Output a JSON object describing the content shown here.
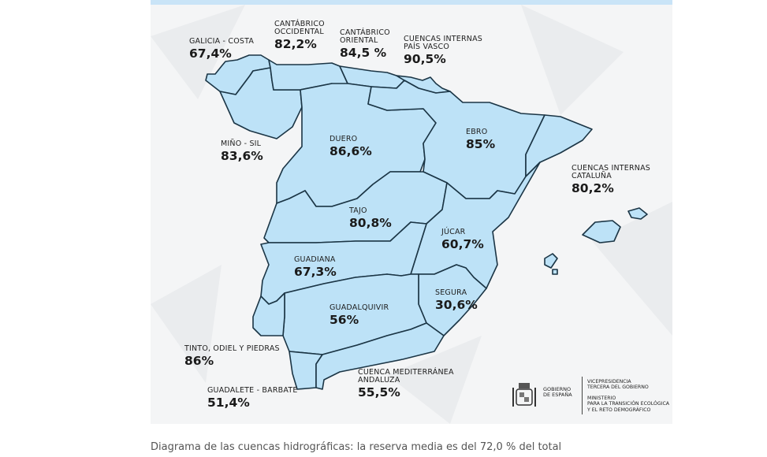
{
  "colors": {
    "region_fill": "#bde2f7",
    "region_border": "#1b3545",
    "panel_bg": "#f4f5f6",
    "top_bar": "#c9e4f7"
  },
  "basins": [
    {
      "id": "galicia-costa",
      "name": "GALICIA - COSTA",
      "value": "67,4%"
    },
    {
      "id": "cantabrico-occidental",
      "name": "CANTÁBRICO\nOCCIDENTAL",
      "value": "82,2%"
    },
    {
      "id": "cantabrico-oriental",
      "name": "CANTÁBRICO\nORIENTAL",
      "value": "84,5 %"
    },
    {
      "id": "pais-vasco",
      "name": "CUENCAS INTERNAS\nPAÍS VASCO",
      "value": "90,5%"
    },
    {
      "id": "mino-sil",
      "name": "MIÑO - SIL",
      "value": "83,6%"
    },
    {
      "id": "duero",
      "name": "DUERO",
      "value": "86,6%"
    },
    {
      "id": "ebro",
      "name": "EBRO",
      "value": "85%"
    },
    {
      "id": "cataluna",
      "name": "CUENCAS INTERNAS\nCATALUÑA",
      "value": "80,2%"
    },
    {
      "id": "tajo",
      "name": "TAJO",
      "value": "80,8%"
    },
    {
      "id": "jucar",
      "name": "JÚCAR",
      "value": "60,7%"
    },
    {
      "id": "guadiana",
      "name": "GUADIANA",
      "value": "67,3%"
    },
    {
      "id": "segura",
      "name": "SEGURA",
      "value": "30,6%"
    },
    {
      "id": "guadalquivir",
      "name": "GUADALQUIVIR",
      "value": "56%"
    },
    {
      "id": "tinto-odiel-piedras",
      "name": "TINTO, ODIEL Y PIEDRAS",
      "value": "86%"
    },
    {
      "id": "guadalete-barbate",
      "name": "GUADALETE - BARBATE",
      "value": "51,4%"
    },
    {
      "id": "mediterranea-andaluza",
      "name": "CUENCA MEDITERRÁNEA\nANDALUZA",
      "value": "55,5%"
    }
  ],
  "logo": {
    "gov": "GOBIERNO\nDE ESPAÑA",
    "vice": "VICEPRESIDENCIA\nTERCERA DEL GOBIERNO",
    "ministry": "MINISTERIO\nPARA LA TRANSICIÓN ECOLÓGICA\nY EL RETO DEMOGRÁFICO"
  },
  "caption": "Diagrama de las cuencas hidrográficas: la reserva media es del 72,0 % del total"
}
